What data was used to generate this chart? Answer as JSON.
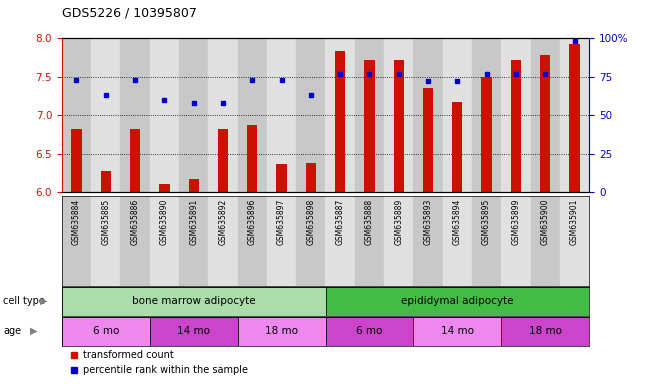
{
  "title": "GDS5226 / 10395807",
  "samples": [
    "GSM635884",
    "GSM635885",
    "GSM635886",
    "GSM635890",
    "GSM635891",
    "GSM635892",
    "GSM635896",
    "GSM635897",
    "GSM635898",
    "GSM635887",
    "GSM635888",
    "GSM635889",
    "GSM635893",
    "GSM635894",
    "GSM635895",
    "GSM635899",
    "GSM635900",
    "GSM635901"
  ],
  "transformed_count": [
    6.82,
    6.27,
    6.82,
    6.1,
    6.17,
    6.82,
    6.87,
    6.37,
    6.38,
    7.83,
    7.72,
    7.72,
    7.35,
    7.17,
    7.5,
    7.72,
    7.78,
    7.93
  ],
  "percentile_rank": [
    73,
    63,
    73,
    60,
    58,
    58,
    73,
    73,
    63,
    77,
    77,
    77,
    72,
    72,
    77,
    77,
    77,
    98
  ],
  "ylim_left": [
    6.0,
    8.0
  ],
  "ylim_right": [
    0,
    100
  ],
  "yticks_left": [
    6.0,
    6.5,
    7.0,
    7.5,
    8.0
  ],
  "yticks_right": [
    0,
    25,
    50,
    75,
    100
  ],
  "bar_color": "#cc1100",
  "dot_color": "#0000cc",
  "cell_type_groups": [
    {
      "label": "bone marrow adipocyte",
      "start": 0,
      "end": 9,
      "color": "#aaddaa"
    },
    {
      "label": "epididymal adipocyte",
      "start": 9,
      "end": 18,
      "color": "#44bb44"
    }
  ],
  "age_groups": [
    {
      "label": "6 mo",
      "start": 0,
      "end": 3,
      "color": "#ee88ee"
    },
    {
      "label": "14 mo",
      "start": 3,
      "end": 6,
      "color": "#cc44cc"
    },
    {
      "label": "18 mo",
      "start": 6,
      "end": 9,
      "color": "#ee88ee"
    },
    {
      "label": "6 mo",
      "start": 9,
      "end": 12,
      "color": "#cc44cc"
    },
    {
      "label": "14 mo",
      "start": 12,
      "end": 15,
      "color": "#ee88ee"
    },
    {
      "label": "18 mo",
      "start": 15,
      "end": 18,
      "color": "#cc44cc"
    }
  ],
  "legend_bar_label": "transformed count",
  "legend_dot_label": "percentile rank within the sample",
  "tick_label_color_left": "#cc1100",
  "tick_label_color_right": "#0000cc",
  "col_colors_even": "#c8c8c8",
  "col_colors_odd": "#e0e0e0"
}
